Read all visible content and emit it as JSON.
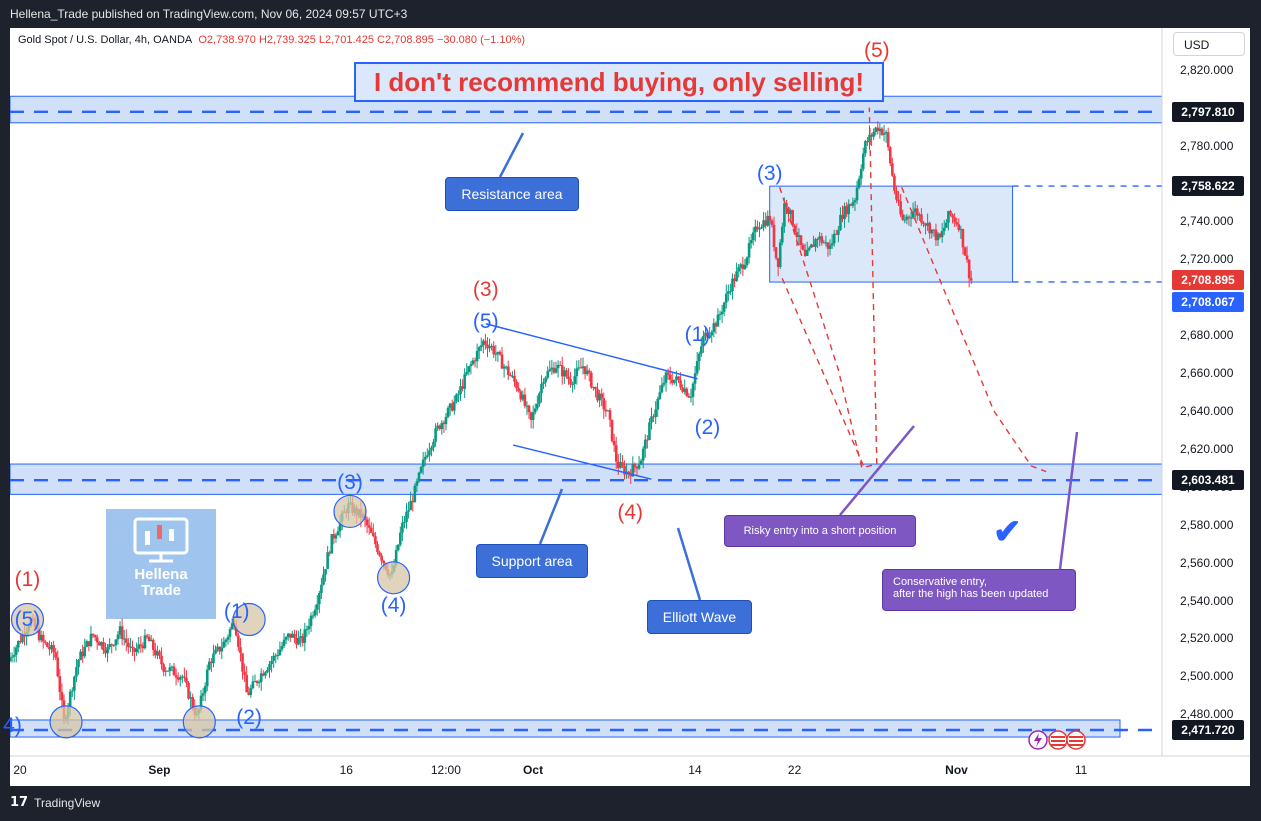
{
  "header": {
    "published": "Hellena_Trade published on TradingView.com, Nov 06, 2024 09:57 UTC+3"
  },
  "ticker": {
    "symbol": "Gold Spot / U.S. Dollar, 4h, OANDA",
    "open": "O2,738.970",
    "high": "H2,739.325",
    "low": "L2,701.425",
    "close": "C2,708.895",
    "change": "−30.080 (−1.10%)"
  },
  "currency": "USD",
  "headline": "I don't recommend buying, only selling!",
  "footer": {
    "brand": "TradingView"
  },
  "watermark": {
    "line1": "Hellena",
    "line2": "Trade"
  },
  "callouts": {
    "resistance": "Resistance area",
    "support": "Support area",
    "elliott": "Elliott Wave",
    "risky": "Risky entry into a short position",
    "conservative_1": "Conservative entry,",
    "conservative_2": "after the high has been updated"
  },
  "colors": {
    "up": "#089981",
    "down": "#f23645",
    "accent": "#2962ff",
    "red": "#e53935",
    "zone": "#cfe0f8"
  },
  "chart_data": {
    "type": "candlestick",
    "symbol": "Gold Spot / U.S. Dollar",
    "interval": "4h",
    "ylim": [
      2458,
      2842
    ],
    "y_ticks": [
      "2,480.000",
      "2,500.000",
      "2,520.000",
      "2,540.000",
      "2,560.000",
      "2,580.000",
      "2,600.000",
      "2,620.000",
      "2,640.000",
      "2,660.000",
      "2,680.000",
      "2,700.000",
      "2,720.000",
      "2,740.000",
      "2,760.000",
      "2,780.000",
      "2,800.000",
      "2,820.000"
    ],
    "x_ticks": [
      "20",
      "Sep",
      "16",
      "12:00",
      "Oct",
      "14",
      "22",
      "Nov",
      "11"
    ],
    "x_tick_days": [
      0,
      12,
      27,
      35,
      42,
      55,
      63,
      76,
      86
    ],
    "x_range_days": [
      0,
      92.5
    ],
    "price_levels": [
      {
        "value": 2797.81,
        "label": "2,797.810",
        "style": "dark"
      },
      {
        "value": 2758.622,
        "label": "2,758.622",
        "style": "dark"
      },
      {
        "value": 2708.895,
        "label": "2,708.895",
        "style": "red"
      },
      {
        "value": 2708.067,
        "label": "2,708.067",
        "style": "blue"
      },
      {
        "value": 2603.481,
        "label": "2,603.481",
        "style": "dark"
      },
      {
        "value": 2471.72,
        "label": "2,471.720",
        "style": "dark"
      }
    ],
    "zones": [
      {
        "name": "Resistance area",
        "from": 2792,
        "to": 2806
      },
      {
        "name": "Support area",
        "from": 2596,
        "to": 2612
      },
      {
        "name": "bottom",
        "from": 2468,
        "to": 2477
      }
    ],
    "consolidation_box": {
      "x": [
        61,
        80.5
      ],
      "y": [
        2708,
        2758.6
      ]
    },
    "price_path": [
      [
        0,
        2508
      ],
      [
        1.2,
        2522
      ],
      [
        1.8,
        2530
      ],
      [
        2.8,
        2518
      ],
      [
        3.8,
        2512
      ],
      [
        4.5,
        2476
      ],
      [
        5.6,
        2508
      ],
      [
        6.8,
        2522
      ],
      [
        8,
        2514
      ],
      [
        9,
        2524
      ],
      [
        10,
        2512
      ],
      [
        11.2,
        2520
      ],
      [
        12.5,
        2505
      ],
      [
        14,
        2500
      ],
      [
        15.2,
        2478
      ],
      [
        16.2,
        2508
      ],
      [
        17.4,
        2518
      ],
      [
        18.2,
        2530
      ],
      [
        19.2,
        2490
      ],
      [
        20.4,
        2502
      ],
      [
        21.6,
        2512
      ],
      [
        22.6,
        2522
      ],
      [
        23.6,
        2518
      ],
      [
        24.8,
        2540
      ],
      [
        26,
        2572
      ],
      [
        27.3,
        2590
      ],
      [
        28.5,
        2584
      ],
      [
        29.5,
        2570
      ],
      [
        30.8,
        2552
      ],
      [
        31.6,
        2578
      ],
      [
        32.6,
        2596
      ],
      [
        33.6,
        2618
      ],
      [
        34.6,
        2632
      ],
      [
        36,
        2646
      ],
      [
        37,
        2662
      ],
      [
        38.2,
        2677
      ],
      [
        38.8,
        2674
      ],
      [
        39.6,
        2666
      ],
      [
        41,
        2652
      ],
      [
        42,
        2634
      ],
      [
        43,
        2658
      ],
      [
        44,
        2664
      ],
      [
        45.2,
        2656
      ],
      [
        46.2,
        2664
      ],
      [
        47.2,
        2650
      ],
      [
        48.2,
        2638
      ],
      [
        48.9,
        2612
      ],
      [
        49.8,
        2607
      ],
      [
        50.8,
        2614
      ],
      [
        51.8,
        2638
      ],
      [
        52.8,
        2658
      ],
      [
        53.8,
        2656
      ],
      [
        54.8,
        2648
      ],
      [
        55.8,
        2678
      ],
      [
        57,
        2688
      ],
      [
        58,
        2706
      ],
      [
        59.2,
        2720
      ],
      [
        60.2,
        2738
      ],
      [
        61.2,
        2742
      ],
      [
        61.8,
        2716
      ],
      [
        62.4,
        2752
      ],
      [
        63.2,
        2736
      ],
      [
        64,
        2720
      ],
      [
        65,
        2732
      ],
      [
        66,
        2726
      ],
      [
        67,
        2744
      ],
      [
        68,
        2752
      ],
      [
        68.8,
        2780
      ],
      [
        69.8,
        2790
      ],
      [
        70.5,
        2786
      ],
      [
        71.2,
        2756
      ],
      [
        71.8,
        2740
      ],
      [
        72.8,
        2746
      ],
      [
        73.6,
        2740
      ],
      [
        74.8,
        2730
      ],
      [
        75.6,
        2744
      ],
      [
        76.4,
        2738
      ],
      [
        77.3,
        2708.9
      ]
    ],
    "wave_labels": [
      {
        "text": "(1)",
        "day": 1.4,
        "price": 2551,
        "color": "red"
      },
      {
        "text": "(5)",
        "day": 1.4,
        "price": 2530,
        "color": "blue"
      },
      {
        "text": "4)",
        "day": 0.2,
        "price": 2474,
        "color": "blue"
      },
      {
        "text": "(1)",
        "day": 18.2,
        "price": 2534,
        "color": "blue"
      },
      {
        "text": "(2)",
        "day": 19.2,
        "price": 2478,
        "color": "blue"
      },
      {
        "text": "(3)",
        "day": 27.3,
        "price": 2602,
        "color": "blue"
      },
      {
        "text": "(4)",
        "day": 30.8,
        "price": 2537,
        "color": "blue"
      },
      {
        "text": "(3)",
        "day": 38.2,
        "price": 2704,
        "color": "red"
      },
      {
        "text": "(5)",
        "day": 38.2,
        "price": 2687,
        "color": "blue"
      },
      {
        "text": "(4)",
        "day": 49.8,
        "price": 2586,
        "color": "red"
      },
      {
        "text": "(1)",
        "day": 55.2,
        "price": 2680,
        "color": "blue"
      },
      {
        "text": "(2)",
        "day": 56,
        "price": 2631,
        "color": "blue"
      },
      {
        "text": "(3)",
        "day": 61,
        "price": 2765,
        "color": "blue"
      },
      {
        "text": "(5)",
        "day": 69.6,
        "price": 2830,
        "color": "red"
      }
    ],
    "circles": [
      [
        1.4,
        2530
      ],
      [
        4.5,
        2476
      ],
      [
        15.2,
        2476
      ],
      [
        19.2,
        2530
      ],
      [
        27.3,
        2587
      ],
      [
        30.8,
        2552
      ]
    ],
    "channel_lines": [
      [
        [
          38.2,
          2686
        ],
        [
          55.2,
          2657
        ]
      ],
      [
        [
          40.4,
          2622
        ],
        [
          51.5,
          2604
        ]
      ]
    ],
    "projection_lines": [
      [
        [
          61.8,
          2758
        ],
        [
          66.5,
          2662
        ],
        [
          68.4,
          2610
        ],
        [
          69.6,
          2612
        ],
        [
          69,
          2800
        ]
      ],
      [
        [
          62,
          2710
        ],
        [
          68.6,
          2610
        ]
      ],
      [
        [
          71.6,
          2758
        ],
        [
          79,
          2640
        ],
        [
          82,
          2611
        ],
        [
          83.2,
          2608
        ]
      ]
    ]
  }
}
